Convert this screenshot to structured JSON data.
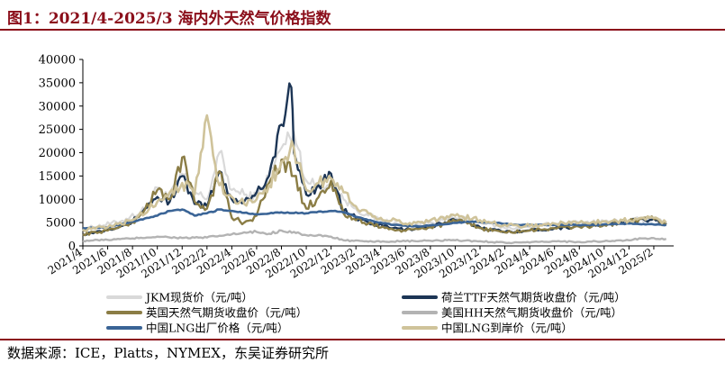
{
  "figure": {
    "title": "图1：2021/4-2025/3 海内外天然气价格指数",
    "source": "数据来源：ICE，Platts，NYMEX，东吴证券研究所"
  },
  "chart_data": {
    "type": "line",
    "ylim": [
      0,
      40000
    ],
    "yticks": [
      "0",
      "5000",
      "10000",
      "15000",
      "20000",
      "25000",
      "30000",
      "35000",
      "40000"
    ],
    "x_range": [
      "2021-04",
      "2025-03"
    ],
    "xticks": [
      "2021/4",
      "2021/6",
      "2021/8",
      "2021/10",
      "2021/12",
      "2022/2",
      "2022/4",
      "2022/6",
      "2022/8",
      "2022/10",
      "2022/12",
      "2023/2",
      "2023/4",
      "2023/6",
      "2023/8",
      "2023/10",
      "2023/12",
      "2024/2",
      "2024/4",
      "2024/6",
      "2024/8",
      "2024/10",
      "2024/12",
      "2025/2"
    ],
    "grid": false,
    "legend_position": "bottom",
    "series": [
      {
        "name": "JKM现货价（元/吨）",
        "color": "#d9d9d9",
        "width": 2.2,
        "points": [
          [
            "2021-04",
            3600
          ],
          [
            "2021-07",
            5200
          ],
          [
            "2021-09",
            7800
          ],
          [
            "2021-10",
            12500
          ],
          [
            "2021-11",
            10500
          ],
          [
            "2021-12",
            15500
          ],
          [
            "2022-01",
            11500
          ],
          [
            "2022-02",
            10000
          ],
          [
            "2022-03",
            20000
          ],
          [
            "2022-04",
            12000
          ],
          [
            "2022-05",
            11000
          ],
          [
            "2022-06",
            10500
          ],
          [
            "2022-07",
            15000
          ],
          [
            "2022-08",
            21000
          ],
          [
            "2022-09",
            24500
          ],
          [
            "2022-10",
            14000
          ],
          [
            "2022-11",
            12500
          ],
          [
            "2022-12",
            13500
          ],
          [
            "2023-01",
            10000
          ],
          [
            "2023-02",
            8000
          ],
          [
            "2023-03",
            6500
          ],
          [
            "2023-04",
            5500
          ],
          [
            "2023-06",
            4300
          ],
          [
            "2023-08",
            5000
          ],
          [
            "2023-10",
            6000
          ],
          [
            "2023-12",
            5200
          ],
          [
            "2024-02",
            3800
          ],
          [
            "2024-04",
            4000
          ],
          [
            "2024-06",
            4800
          ],
          [
            "2024-08",
            5000
          ],
          [
            "2024-10",
            5200
          ],
          [
            "2024-12",
            5500
          ],
          [
            "2025-02",
            5800
          ],
          [
            "2025-03",
            4800
          ]
        ]
      },
      {
        "name": "荷兰TTF天然气期货收盘价（元/吨）",
        "color": "#1c3555",
        "width": 2.4,
        "points": [
          [
            "2021-04",
            2500
          ],
          [
            "2021-06",
            3500
          ],
          [
            "2021-08",
            5200
          ],
          [
            "2021-09",
            8000
          ],
          [
            "2021-10",
            10500
          ],
          [
            "2021-11",
            9500
          ],
          [
            "2021-12",
            15000
          ],
          [
            "2022-01",
            9000
          ],
          [
            "2022-02",
            8500
          ],
          [
            "2022-03",
            16000
          ],
          [
            "2022-04",
            10000
          ],
          [
            "2022-05",
            9500
          ],
          [
            "2022-06",
            11500
          ],
          [
            "2022-07",
            15000
          ],
          [
            "2022-08",
            26000
          ],
          [
            "2022-08-25",
            34000
          ],
          [
            "2022-09",
            20000
          ],
          [
            "2022-10",
            11000
          ],
          [
            "2022-11",
            13000
          ],
          [
            "2022-12",
            15500
          ],
          [
            "2023-01",
            7500
          ],
          [
            "2023-02",
            6000
          ],
          [
            "2023-03",
            5000
          ],
          [
            "2023-05",
            3800
          ],
          [
            "2023-06",
            3500
          ],
          [
            "2023-08",
            4200
          ],
          [
            "2023-10",
            5500
          ],
          [
            "2023-11",
            5000
          ],
          [
            "2023-12",
            4000
          ],
          [
            "2024-02",
            3000
          ],
          [
            "2024-04",
            3300
          ],
          [
            "2024-06",
            3800
          ],
          [
            "2024-08",
            4200
          ],
          [
            "2024-10",
            4500
          ],
          [
            "2024-12",
            5200
          ],
          [
            "2025-02",
            5900
          ],
          [
            "2025-03",
            4600
          ]
        ]
      },
      {
        "name": "英国天然气期货收盘价（元/吨）",
        "color": "#8b7d45",
        "width": 2.4,
        "points": [
          [
            "2021-04",
            2500
          ],
          [
            "2021-06",
            3300
          ],
          [
            "2021-08",
            5000
          ],
          [
            "2021-09",
            7800
          ],
          [
            "2021-10",
            12000
          ],
          [
            "2021-11",
            10000
          ],
          [
            "2021-12",
            19000
          ],
          [
            "2022-01",
            9500
          ],
          [
            "2022-02",
            8000
          ],
          [
            "2022-03",
            16000
          ],
          [
            "2022-04",
            6000
          ],
          [
            "2022-05",
            5000
          ],
          [
            "2022-06",
            6500
          ],
          [
            "2022-07",
            13500
          ],
          [
            "2022-08",
            18500
          ],
          [
            "2022-09",
            15000
          ],
          [
            "2022-10",
            8000
          ],
          [
            "2022-11",
            10500
          ],
          [
            "2022-12",
            14000
          ],
          [
            "2023-01",
            7000
          ],
          [
            "2023-02",
            5500
          ],
          [
            "2023-03",
            4800
          ],
          [
            "2023-05",
            3500
          ],
          [
            "2023-06",
            3200
          ],
          [
            "2023-08",
            4000
          ],
          [
            "2023-10",
            5300
          ],
          [
            "2023-11",
            4800
          ],
          [
            "2023-12",
            3800
          ],
          [
            "2024-02",
            2900
          ],
          [
            "2024-04",
            3300
          ],
          [
            "2024-06",
            3800
          ],
          [
            "2024-08",
            4100
          ],
          [
            "2024-10",
            4500
          ],
          [
            "2024-12",
            5200
          ],
          [
            "2025-02",
            5800
          ],
          [
            "2025-03",
            4500
          ]
        ]
      },
      {
        "name": "美国HH天然气期货收盘价（元/吨）",
        "color": "#b3b3b3",
        "width": 2.4,
        "points": [
          [
            "2021-04",
            1100
          ],
          [
            "2021-06",
            1300
          ],
          [
            "2021-08",
            1600
          ],
          [
            "2021-10",
            2000
          ],
          [
            "2021-12",
            1700
          ],
          [
            "2022-02",
            1800
          ],
          [
            "2022-04",
            2500
          ],
          [
            "2022-06",
            3000
          ],
          [
            "2022-07",
            2600
          ],
          [
            "2022-08",
            3300
          ],
          [
            "2022-09",
            3000
          ],
          [
            "2022-10",
            2300
          ],
          [
            "2022-12",
            2000
          ],
          [
            "2023-01",
            1200
          ],
          [
            "2023-03",
            900
          ],
          [
            "2023-06",
            1000
          ],
          [
            "2023-08",
            1100
          ],
          [
            "2023-10",
            1200
          ],
          [
            "2023-12",
            1000
          ],
          [
            "2024-02",
            700
          ],
          [
            "2024-04",
            700
          ],
          [
            "2024-06",
            1000
          ],
          [
            "2024-08",
            850
          ],
          [
            "2024-10",
            1000
          ],
          [
            "2024-12",
            1200
          ],
          [
            "2025-01",
            1600
          ],
          [
            "2025-03",
            1500
          ]
        ]
      },
      {
        "name": "中国LNG出厂价格（元/吨）",
        "color": "#3a6496",
        "width": 2.6,
        "points": [
          [
            "2021-04",
            3800
          ],
          [
            "2021-06",
            4000
          ],
          [
            "2021-08",
            5200
          ],
          [
            "2021-10",
            6500
          ],
          [
            "2021-11",
            7500
          ],
          [
            "2021-12",
            7800
          ],
          [
            "2022-01",
            6500
          ],
          [
            "2022-02",
            7000
          ],
          [
            "2022-03",
            7800
          ],
          [
            "2022-04",
            7500
          ],
          [
            "2022-06",
            6800
          ],
          [
            "2022-08",
            7200
          ],
          [
            "2022-10",
            7000
          ],
          [
            "2022-12",
            7500
          ],
          [
            "2023-01",
            7200
          ],
          [
            "2023-03",
            5500
          ],
          [
            "2023-05",
            4500
          ],
          [
            "2023-07",
            4200
          ],
          [
            "2023-09",
            4600
          ],
          [
            "2023-11",
            5200
          ],
          [
            "2024-01",
            5000
          ],
          [
            "2024-03",
            4500
          ],
          [
            "2024-06",
            4500
          ],
          [
            "2024-09",
            4500
          ],
          [
            "2024-12",
            4800
          ],
          [
            "2025-03",
            4500
          ]
        ]
      },
      {
        "name": "中国LNG到岸价（元/吨）",
        "color": "#cfc39a",
        "width": 2.6,
        "points": [
          [
            "2021-04",
            3500
          ],
          [
            "2021-06",
            4000
          ],
          [
            "2021-08",
            5500
          ],
          [
            "2021-10",
            9500
          ],
          [
            "2021-11",
            11500
          ],
          [
            "2021-12",
            13500
          ],
          [
            "2022-01",
            11000
          ],
          [
            "2022-02",
            28000
          ],
          [
            "2022-03",
            13000
          ],
          [
            "2022-04",
            10500
          ],
          [
            "2022-05",
            9000
          ],
          [
            "2022-06",
            10000
          ],
          [
            "2022-07",
            13000
          ],
          [
            "2022-08",
            18000
          ],
          [
            "2022-09",
            21000
          ],
          [
            "2022-10",
            12000
          ],
          [
            "2022-11",
            13500
          ],
          [
            "2022-12",
            14500
          ],
          [
            "2023-01",
            11500
          ],
          [
            "2023-02",
            8500
          ],
          [
            "2023-03",
            7000
          ],
          [
            "2023-04",
            6000
          ],
          [
            "2023-06",
            4800
          ],
          [
            "2023-08",
            5500
          ],
          [
            "2023-10",
            6500
          ],
          [
            "2023-12",
            5500
          ],
          [
            "2024-02",
            4500
          ],
          [
            "2024-04",
            4300
          ],
          [
            "2024-06",
            4800
          ],
          [
            "2024-08",
            5000
          ],
          [
            "2024-10",
            5300
          ],
          [
            "2024-12",
            5500
          ],
          [
            "2025-02",
            6000
          ],
          [
            "2025-03",
            5000
          ]
        ]
      }
    ]
  }
}
